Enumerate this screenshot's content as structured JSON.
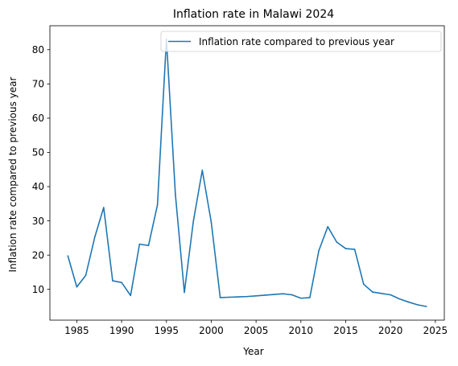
{
  "chart_data": {
    "type": "line",
    "title": "Inflation rate in Malawi 2024",
    "xlabel": "Year",
    "ylabel": "Inflation rate compared to previous year",
    "xlim": [
      1982,
      2026
    ],
    "ylim": [
      1.0,
      87.0
    ],
    "xticks": [
      1985,
      1990,
      1995,
      2000,
      2005,
      2010,
      2015,
      2020,
      2025
    ],
    "yticks": [
      10,
      20,
      30,
      40,
      50,
      60,
      70,
      80
    ],
    "grid": false,
    "legend_position": "top-right",
    "series": [
      {
        "name": "Inflation rate compared to previous year",
        "color": "#1f77b4",
        "x": [
          1984,
          1985,
          1986,
          1987,
          1988,
          1989,
          1990,
          1991,
          1992,
          1993,
          1994,
          1995,
          1996,
          1997,
          1998,
          1999,
          2000,
          2001,
          2002,
          2003,
          2004,
          2005,
          2006,
          2007,
          2008,
          2009,
          2010,
          2011,
          2012,
          2013,
          2014,
          2015,
          2016,
          2017,
          2018,
          2019,
          2020,
          2021,
          2022,
          2023,
          2024
        ],
        "values": [
          19.8,
          10.7,
          14.1,
          25.2,
          33.9,
          12.5,
          12.0,
          8.2,
          23.2,
          22.8,
          34.7,
          83.1,
          37.7,
          9.1,
          29.8,
          44.8,
          29.6,
          7.6,
          7.7,
          7.8,
          7.9,
          8.1,
          8.3,
          8.5,
          8.7,
          8.4,
          7.4,
          7.6,
          21.3,
          28.3,
          23.8,
          21.9,
          21.7,
          11.5,
          9.2,
          8.8,
          8.4,
          7.2,
          6.3,
          5.5,
          5.0
        ]
      }
    ]
  }
}
